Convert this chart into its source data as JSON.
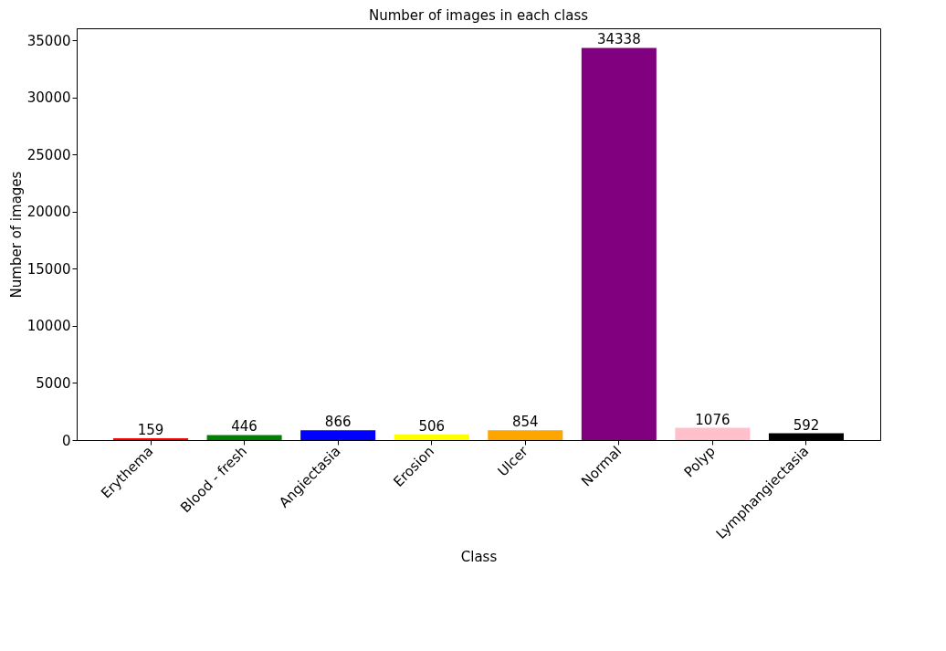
{
  "chart_data": {
    "type": "bar",
    "title": "Number of images in each class",
    "xlabel": "Class",
    "ylabel": "Number of images",
    "categories": [
      "Erythema",
      "Blood - fresh",
      "Angiectasia",
      "Erosion",
      "Ulcer",
      "Normal",
      "Polyp",
      "Lymphangiectasia"
    ],
    "values": [
      159,
      446,
      866,
      506,
      854,
      34338,
      1076,
      592
    ],
    "colors": [
      "#ff0000",
      "#008000",
      "#0000ff",
      "#ffff00",
      "#ffa500",
      "#800080",
      "#ffc0cb",
      "#000000"
    ],
    "ylim": [
      0,
      36055
    ],
    "yticks": [
      0,
      5000,
      10000,
      15000,
      20000,
      25000,
      30000,
      35000
    ],
    "data_labels": true
  }
}
